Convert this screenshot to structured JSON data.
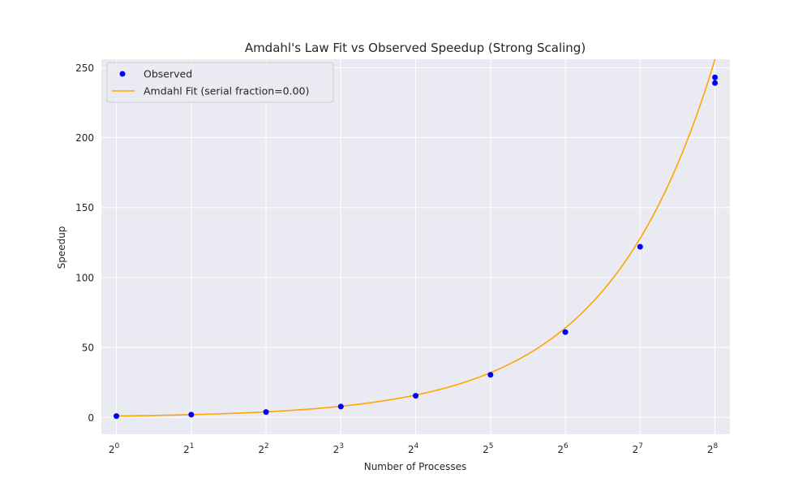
{
  "chart_data": {
    "type": "scatter",
    "title": "Amdahl's Law Fit vs Observed Speedup (Strong Scaling)",
    "xlabel": "Number of Processes",
    "ylabel": "Speedup",
    "x_scale": "log2",
    "xlim": [
      0.87,
      294
    ],
    "ylim": [
      -12,
      256
    ],
    "grid": true,
    "legend_position": "top-left",
    "x_ticks": [
      {
        "value": 1,
        "base": "2",
        "exp": "0"
      },
      {
        "value": 2,
        "base": "2",
        "exp": "1"
      },
      {
        "value": 4,
        "base": "2",
        "exp": "2"
      },
      {
        "value": 8,
        "base": "2",
        "exp": "3"
      },
      {
        "value": 16,
        "base": "2",
        "exp": "4"
      },
      {
        "value": 32,
        "base": "2",
        "exp": "5"
      },
      {
        "value": 64,
        "base": "2",
        "exp": "6"
      },
      {
        "value": 128,
        "base": "2",
        "exp": "7"
      },
      {
        "value": 256,
        "base": "2",
        "exp": "8"
      }
    ],
    "y_ticks": [
      0,
      50,
      100,
      150,
      200,
      250
    ],
    "series": [
      {
        "name": "Observed",
        "kind": "scatter",
        "color": "#0000ff",
        "x": [
          1,
          2,
          4,
          8,
          16,
          32,
          64,
          128,
          256,
          256
        ],
        "y": [
          1.0,
          2.0,
          3.9,
          7.8,
          15.5,
          30.5,
          61.0,
          122.0,
          239.0,
          243.0
        ]
      },
      {
        "name": "Amdahl Fit (serial fraction=0.00)",
        "kind": "line",
        "color": "#ffa500",
        "serial_fraction": 0.0,
        "x_range": [
          1,
          256
        ]
      }
    ]
  }
}
